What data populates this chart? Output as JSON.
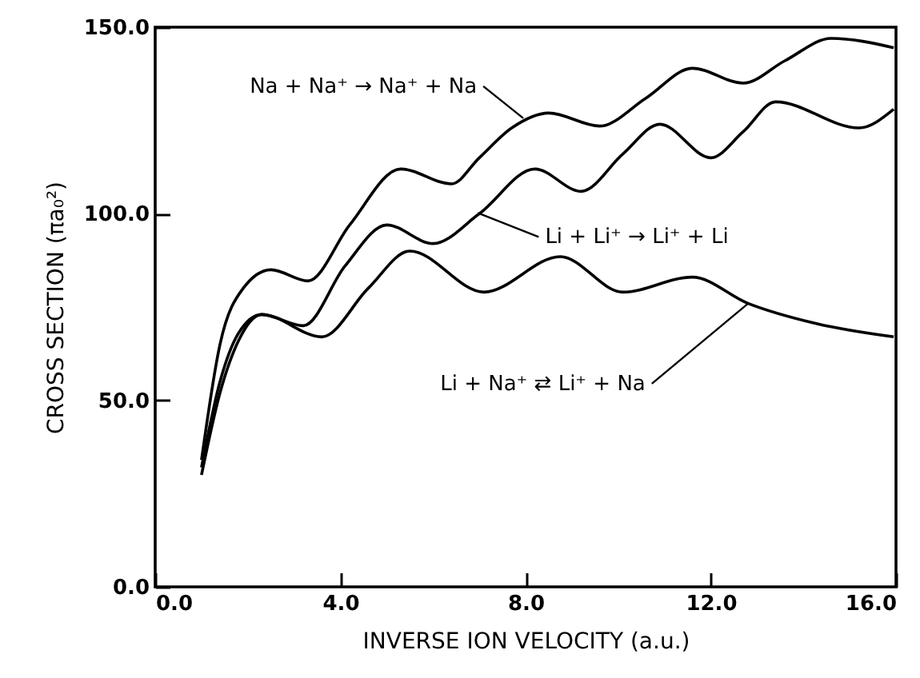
{
  "chart_data": {
    "type": "line",
    "xlabel": "INVERSE ION VELOCITY (a.u.)",
    "ylabel": "CROSS SECTION (πa₀²)",
    "xlim": [
      0,
      16
    ],
    "ylim": [
      0,
      150
    ],
    "xticks": [
      {
        "value": 0,
        "label": "0.0"
      },
      {
        "value": 4,
        "label": "4.0"
      },
      {
        "value": 8,
        "label": "8.0"
      },
      {
        "value": 12,
        "label": "12.0"
      },
      {
        "value": 16,
        "label": "16.0"
      }
    ],
    "yticks": [
      {
        "value": 0,
        "label": "0.0"
      },
      {
        "value": 50,
        "label": "50.0"
      },
      {
        "value": 100,
        "label": "100.0"
      },
      {
        "value": 150,
        "label": "150.0"
      }
    ],
    "marker": "none",
    "line_style": "solid",
    "series": [
      {
        "color": "#000000",
        "x": [
          1.0,
          1.4,
          1.9,
          2.5,
          3.3,
          4.2,
          5.3,
          6.4,
          7.0,
          7.7,
          8.5,
          9.6,
          10.6,
          11.6,
          12.7,
          13.6,
          14.6,
          15.95
        ],
        "values": [
          34,
          65,
          80,
          85,
          82,
          97,
          112,
          108,
          115,
          123,
          127,
          123.5,
          131,
          139,
          135,
          141,
          147,
          144.5
        ]
      },
      {
        "color": "#000000",
        "x": [
          1.0,
          1.4,
          1.8,
          2.3,
          3.2,
          4.1,
          5.0,
          6.0,
          7.0,
          8.2,
          9.2,
          10.1,
          10.9,
          12.0,
          12.7,
          13.4,
          15.2,
          15.95
        ],
        "values": [
          32,
          55,
          68,
          73,
          70,
          86,
          97,
          92,
          100,
          112,
          106,
          116,
          124,
          115,
          122,
          130,
          123,
          128
        ]
      },
      {
        "color": "#000000",
        "x": [
          1.0,
          1.4,
          1.8,
          2.3,
          3.6,
          4.6,
          5.5,
          7.1,
          8.75,
          10.1,
          11.6,
          12.8,
          14.3,
          15.95
        ],
        "values": [
          30,
          52,
          66,
          73,
          67,
          80,
          90,
          79,
          88.5,
          79,
          83,
          76,
          70.5,
          67
        ]
      }
    ],
    "annotations": [
      {
        "text": "Na + Na⁺ → Na⁺ + Na",
        "x": 7.95,
        "y": 125.6
      },
      {
        "text": "Li + Li⁺ → Li⁺ + Li",
        "x": 6.97,
        "y": 100.2
      },
      {
        "text": "Li + Na⁺ ⇄ Li⁺ + Na",
        "x": 12.8,
        "y": 75.9
      }
    ]
  }
}
